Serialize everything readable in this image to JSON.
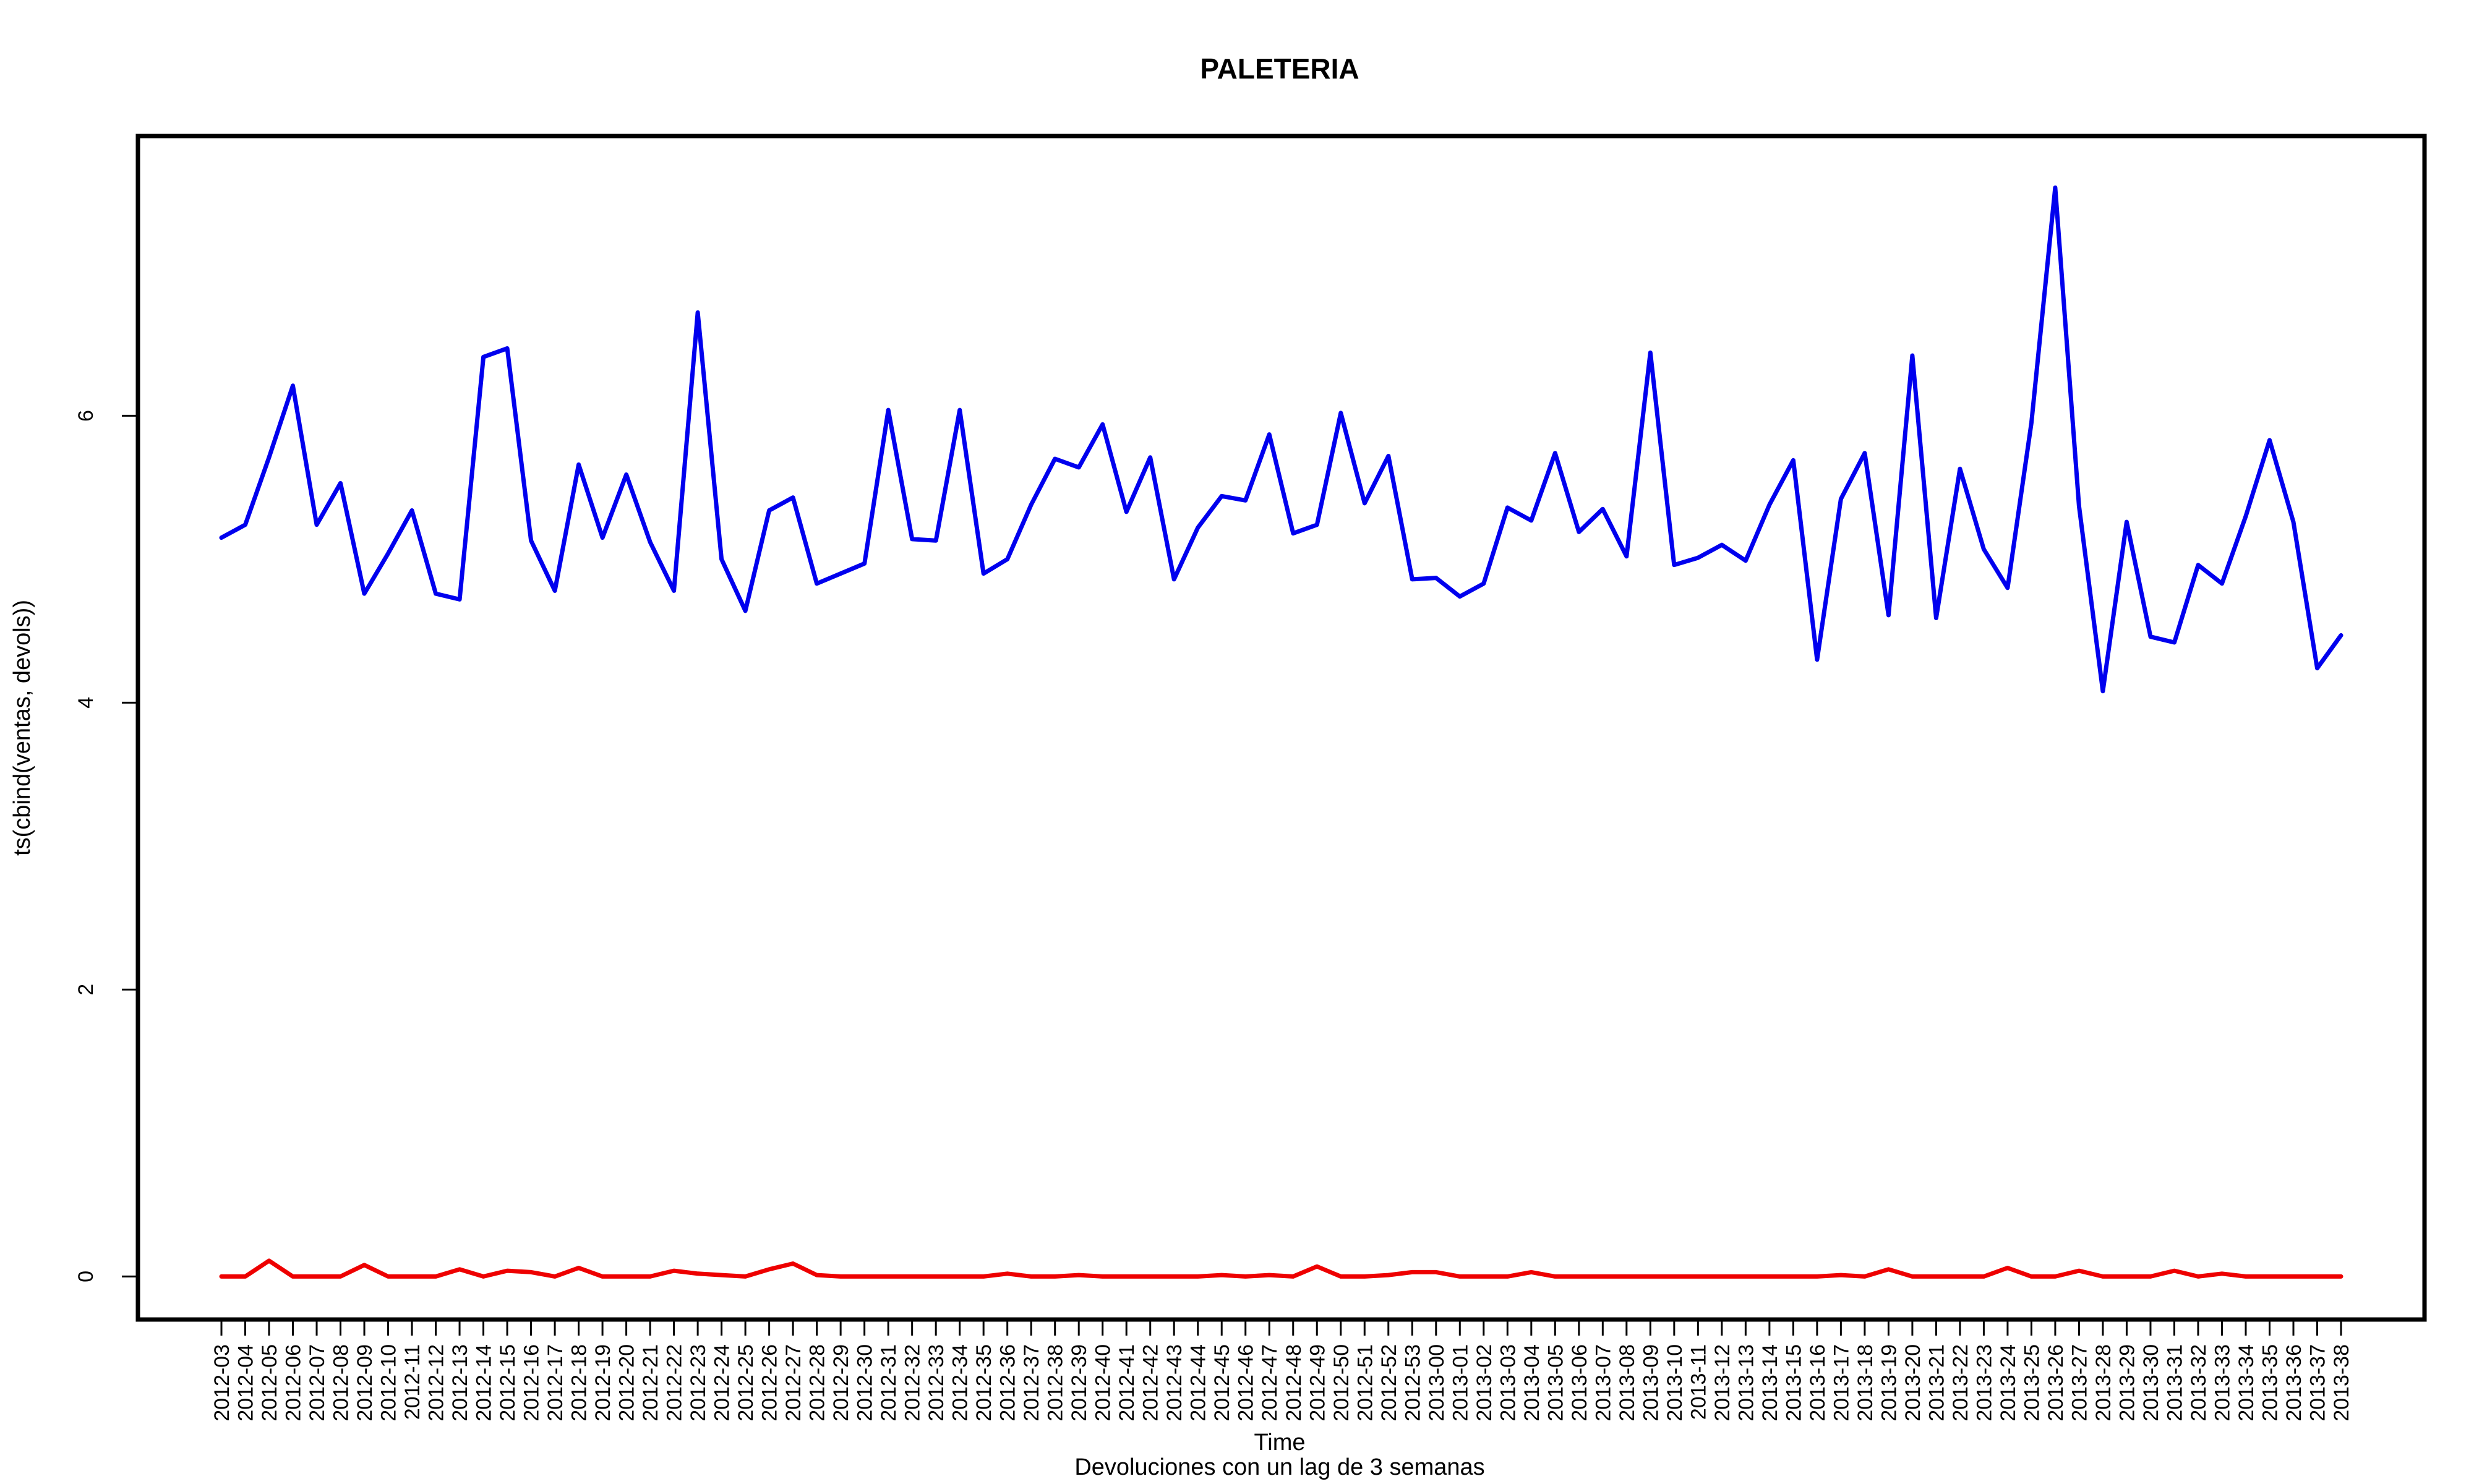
{
  "chart_data": {
    "type": "line",
    "title": "PALETERIA",
    "xlabel": "Time",
    "ylabel": "ts(cbind(ventas, devols))",
    "subtitle": "Devoluciones con un lag de 3 semanas",
    "ylim": [
      -0.3,
      7.95
    ],
    "yticks": [
      0,
      2,
      4,
      6
    ],
    "grid": false,
    "legend": "none",
    "x": [
      "2012-03",
      "2012-04",
      "2012-05",
      "2012-06",
      "2012-07",
      "2012-08",
      "2012-09",
      "2012-10",
      "2012-11",
      "2012-12",
      "2012-13",
      "2012-14",
      "2012-15",
      "2012-16",
      "2012-17",
      "2012-18",
      "2012-19",
      "2012-20",
      "2012-21",
      "2012-22",
      "2012-23",
      "2012-24",
      "2012-25",
      "2012-26",
      "2012-27",
      "2012-28",
      "2012-29",
      "2012-30",
      "2012-31",
      "2012-32",
      "2012-33",
      "2012-34",
      "2012-35",
      "2012-36",
      "2012-37",
      "2012-38",
      "2012-39",
      "2012-40",
      "2012-41",
      "2012-42",
      "2012-43",
      "2012-44",
      "2012-45",
      "2012-46",
      "2012-47",
      "2012-48",
      "2012-49",
      "2012-50",
      "2012-51",
      "2012-52",
      "2012-53",
      "2013-00",
      "2013-01",
      "2013-02",
      "2013-03",
      "2013-04",
      "2013-05",
      "2013-06",
      "2013-07",
      "2013-08",
      "2013-09",
      "2013-10",
      "2013-11",
      "2013-12",
      "2013-13",
      "2013-14",
      "2013-15",
      "2013-16",
      "2013-17",
      "2013-18",
      "2013-19",
      "2013-20",
      "2013-21",
      "2013-22",
      "2013-23",
      "2013-24",
      "2013-25",
      "2013-26",
      "2013-27",
      "2013-28",
      "2013-29",
      "2013-30",
      "2013-31",
      "2013-32",
      "2013-33",
      "2013-34",
      "2013-35",
      "2013-36",
      "2013-37",
      "2013-38"
    ],
    "series": [
      {
        "color": "#0000ee",
        "values": [
          5.15,
          5.24,
          5.71,
          6.21,
          5.24,
          5.53,
          4.76,
          5.04,
          5.34,
          4.76,
          4.72,
          6.41,
          6.47,
          5.13,
          4.78,
          5.66,
          5.15,
          5.59,
          5.12,
          4.78,
          6.72,
          5.0,
          4.64,
          5.34,
          5.43,
          4.83,
          4.9,
          4.97,
          6.04,
          5.14,
          5.13,
          6.04,
          4.9,
          5.0,
          5.38,
          5.7,
          5.64,
          5.94,
          5.33,
          5.71,
          4.86,
          5.22,
          5.44,
          5.41,
          5.87,
          5.18,
          5.24,
          6.02,
          5.39,
          5.72,
          4.86,
          4.87,
          4.74,
          4.83,
          5.36,
          5.27,
          5.74,
          5.19,
          5.35,
          5.02,
          6.44,
          4.96,
          5.01,
          5.1,
          4.99,
          5.38,
          5.69,
          4.3,
          5.42,
          5.74,
          4.61,
          6.42,
          4.59,
          5.63,
          5.07,
          4.8,
          5.95,
          7.59,
          5.37,
          4.08,
          5.26,
          4.46,
          4.42,
          4.96,
          4.83,
          5.3,
          5.83,
          5.26,
          4.24,
          4.47
        ]
      },
      {
        "color": "#ee0000",
        "values": [
          0,
          0,
          0.11,
          0,
          0,
          0,
          0.08,
          0,
          0,
          0,
          0.05,
          0,
          0.04,
          0.03,
          0,
          0.06,
          0,
          0,
          0,
          0.04,
          0.02,
          0.01,
          0,
          0.05,
          0.09,
          0.01,
          0,
          0,
          0,
          0,
          0,
          0,
          0,
          0.02,
          0,
          0,
          0.01,
          0,
          0,
          0,
          0,
          0,
          0.01,
          0,
          0.01,
          0,
          0.07,
          0,
          0,
          0.01,
          0.03,
          0.03,
          0,
          0,
          0,
          0.03,
          0,
          0,
          0,
          0,
          0,
          0,
          0,
          0,
          0,
          0,
          0,
          0,
          0.01,
          0,
          0.05,
          0,
          0,
          0,
          0,
          0.06,
          0,
          0,
          0.04,
          0,
          0,
          0,
          0.04,
          0,
          0.02,
          0,
          0,
          0,
          0,
          0
        ]
      }
    ]
  }
}
